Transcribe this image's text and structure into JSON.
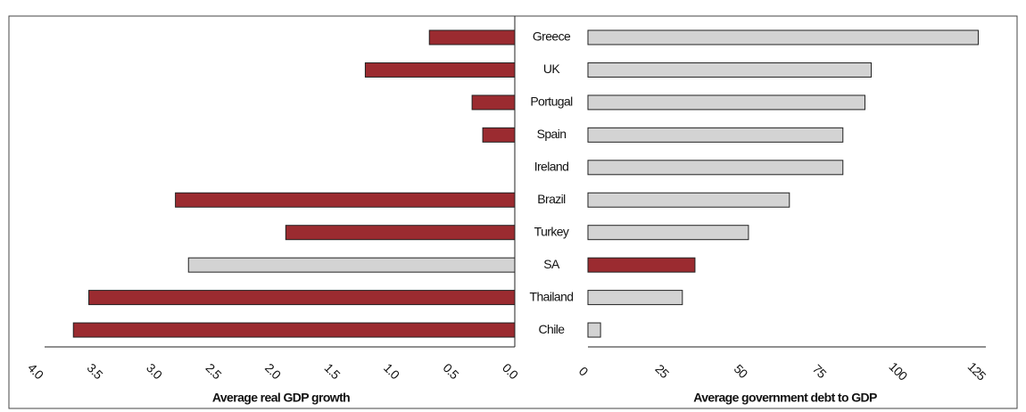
{
  "chart_data": [
    {
      "type": "bar",
      "orientation": "horizontal",
      "reversed": true,
      "x_label": "Average real GDP growth",
      "categories": [
        "Greece",
        "UK",
        "Portugal",
        "Spain",
        "Ireland",
        "Brazil",
        "Turkey",
        "SA",
        "Thailand",
        "Chile"
      ],
      "values": [
        0.72,
        1.26,
        0.36,
        0.27,
        null,
        2.86,
        1.93,
        2.75,
        3.59,
        3.72
      ],
      "colors": [
        "#9b2b30",
        "#9b2b30",
        "#9b2b30",
        "#9b2b30",
        "#9b2b30",
        "#9b2b30",
        "#9b2b30",
        "#d3d3d3",
        "#9b2b30",
        "#9b2b30"
      ],
      "xlim": [
        0,
        4
      ],
      "xticks": [
        {
          "value": 4,
          "label": "4.0"
        },
        3.5,
        {
          "value": 3,
          "label": "3.0"
        },
        2.5,
        {
          "value": 2,
          "label": "2.0"
        },
        1.5,
        {
          "value": 1,
          "label": "1.0"
        },
        0.5,
        {
          "value": 0,
          "label": "0.0"
        }
      ]
    },
    {
      "type": "bar",
      "orientation": "horizontal",
      "x_label": "Average government debt to GDP",
      "values": [
        124,
        90,
        88,
        81,
        81,
        64,
        51,
        34,
        30,
        4
      ],
      "colors": [
        "#d3d3d3",
        "#d3d3d3",
        "#d3d3d3",
        "#d3d3d3",
        "#d3d3d3",
        "#d3d3d3",
        "#d3d3d3",
        "#9b2b30",
        "#d3d3d3",
        "#d3d3d3"
      ],
      "xlim": [
        0,
        125
      ],
      "xticks": [
        0,
        25,
        50,
        75,
        100,
        125
      ]
    }
  ]
}
